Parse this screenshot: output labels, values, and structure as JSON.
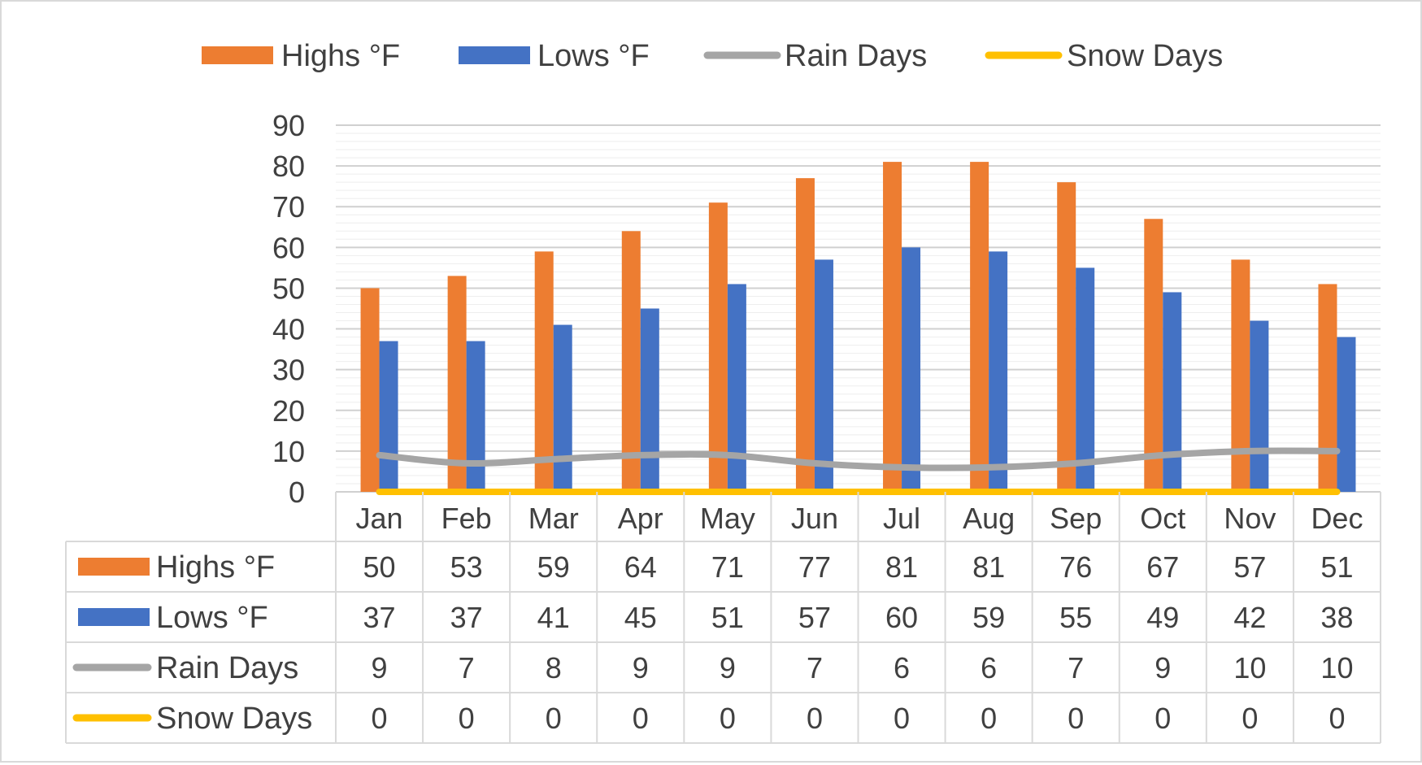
{
  "chart_data": {
    "type": "bar",
    "categories": [
      "Jan",
      "Feb",
      "Mar",
      "Apr",
      "May",
      "Jun",
      "Jul",
      "Aug",
      "Sep",
      "Oct",
      "Nov",
      "Dec"
    ],
    "series": [
      {
        "name": "Highs °F",
        "type": "bar",
        "color": "#ED7D31",
        "values": [
          50,
          53,
          59,
          64,
          71,
          77,
          81,
          81,
          76,
          67,
          57,
          51
        ]
      },
      {
        "name": "Lows °F",
        "type": "bar",
        "color": "#4472C4",
        "values": [
          37,
          37,
          41,
          45,
          51,
          57,
          60,
          59,
          55,
          49,
          42,
          38
        ]
      },
      {
        "name": "Rain Days",
        "type": "line",
        "color": "#A5A5A5",
        "values": [
          9,
          7,
          8,
          9,
          9,
          7,
          6,
          6,
          7,
          9,
          10,
          10
        ]
      },
      {
        "name": "Snow Days",
        "type": "line",
        "color": "#FFC000",
        "values": [
          0,
          0,
          0,
          0,
          0,
          0,
          0,
          0,
          0,
          0,
          0,
          0
        ]
      }
    ],
    "ylim": [
      0,
      90
    ],
    "yticks": [
      0,
      10,
      20,
      30,
      40,
      50,
      60,
      70,
      80,
      90
    ],
    "grid": true,
    "legend_position": "top",
    "data_table": true
  }
}
